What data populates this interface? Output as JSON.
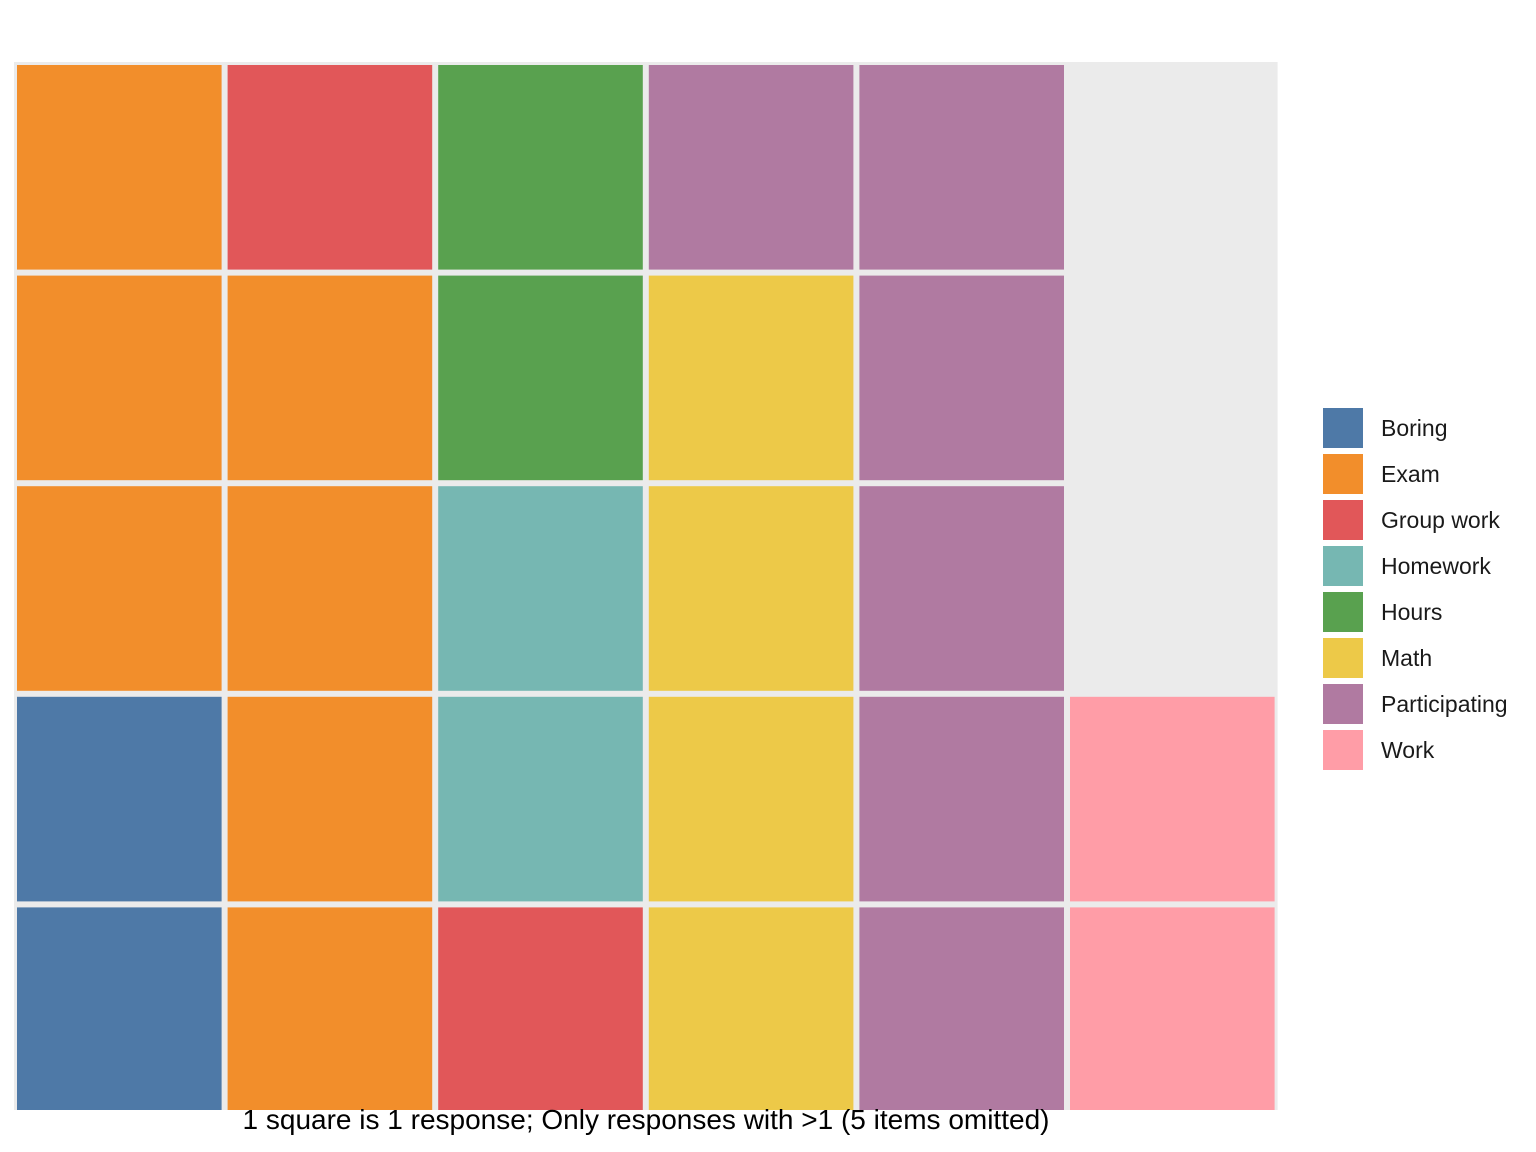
{
  "chart_data": {
    "type": "waffle",
    "caption": "1 square is 1 response; Only responses with >1 (5 items omitted)",
    "rows": 5,
    "columns": 6,
    "categories": [
      {
        "name": "Boring",
        "count": 2,
        "color": "#4E79A7"
      },
      {
        "name": "Exam",
        "count": 7,
        "color": "#F28E2B"
      },
      {
        "name": "Group work",
        "count": 2,
        "color": "#E15759"
      },
      {
        "name": "Homework",
        "count": 2,
        "color": "#76B7B2"
      },
      {
        "name": "Hours",
        "count": 2,
        "color": "#59A14F"
      },
      {
        "name": "Math",
        "count": 4,
        "color": "#EDC948"
      },
      {
        "name": "Participating",
        "count": 6,
        "color": "#B07AA1"
      },
      {
        "name": "Work",
        "count": 2,
        "color": "#FF9DA7"
      }
    ],
    "fill_order": [
      "Boring",
      "Exam",
      "Group work",
      "Homework",
      "Hours",
      "Math",
      "Participating",
      "Work"
    ],
    "empty_color": "#EBEBEB",
    "legend": [
      "Boring",
      "Exam",
      "Group work",
      "Homework",
      "Hours",
      "Math",
      "Participating",
      "Work"
    ],
    "legend_position": "right"
  }
}
